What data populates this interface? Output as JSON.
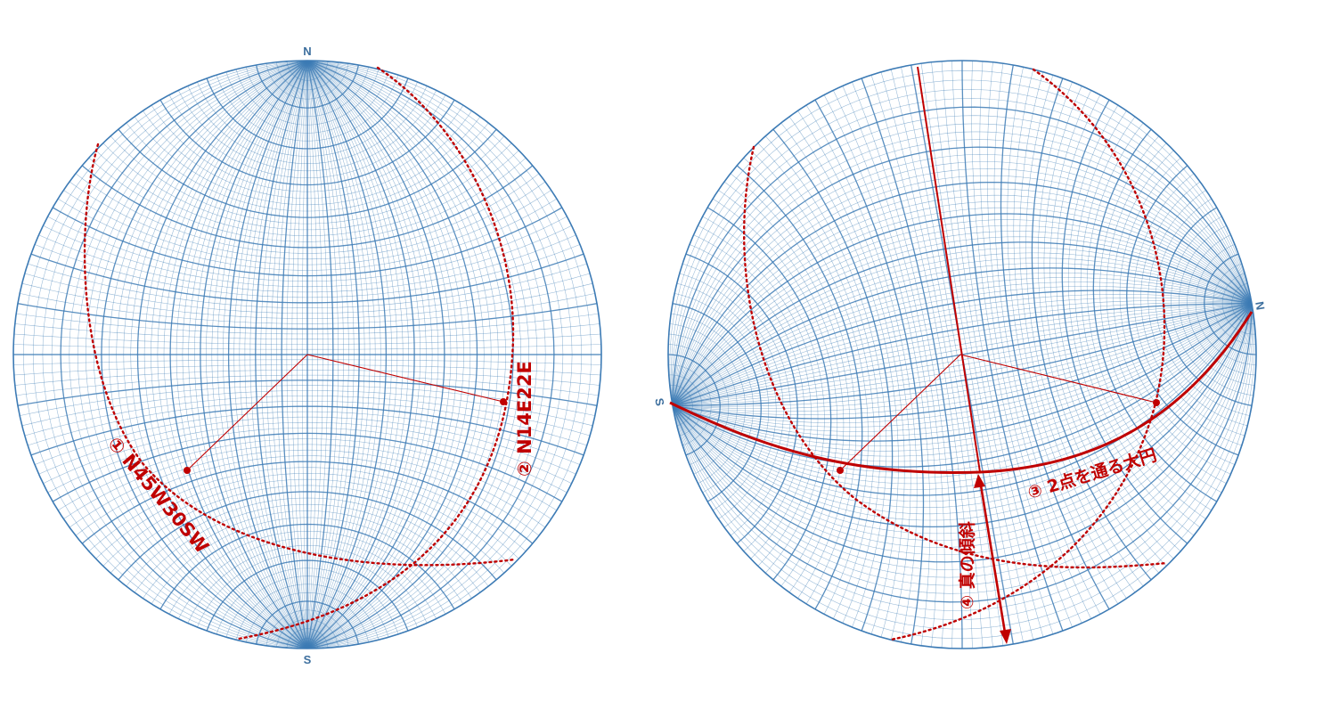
{
  "left_net": {
    "north_label": "N",
    "south_label": "S",
    "plane1_label": "① N45W30SW",
    "plane2_label": "② N14E22E"
  },
  "right_net": {
    "north_label": "N",
    "south_label": "S",
    "great_circle_label": "③ 2点を通る大円",
    "true_dip_label": "④ 真の傾斜"
  },
  "colors": {
    "grid": "#3d7bb5",
    "annotation": "#c00000",
    "background": "#ffffff"
  }
}
